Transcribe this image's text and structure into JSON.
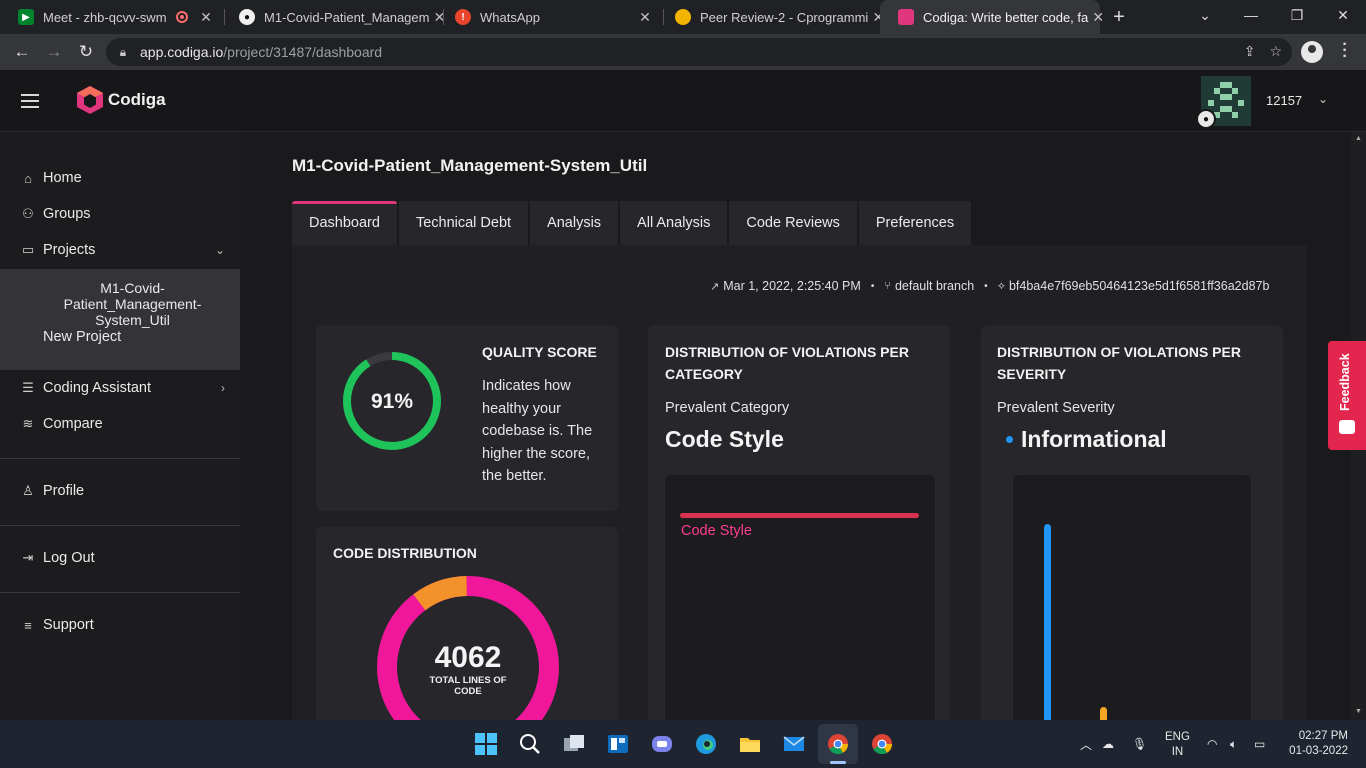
{
  "browser": {
    "tabs": [
      {
        "label": "Meet - zhb-qcvv-swm",
        "active": false
      },
      {
        "label": "M1-Covid-Patient_Managem",
        "active": false
      },
      {
        "label": "WhatsApp",
        "active": false
      },
      {
        "label": "Peer Review-2 - Cprogrammi",
        "active": false
      },
      {
        "label": "Codiga: Write better code, fa",
        "active": true
      }
    ],
    "url_host": "app.codiga.io",
    "url_path": "/project/31487/dashboard"
  },
  "header": {
    "brand": "Codiga",
    "username": "12157"
  },
  "sidebar": {
    "home": "Home",
    "groups": "Groups",
    "projects": "Projects",
    "current_project": "M1-Covid-Patient_Management-System_Util",
    "new_project": "New Project",
    "coding_assistant": "Coding Assistant",
    "compare": "Compare",
    "profile": "Profile",
    "logout": "Log Out",
    "support": "Support"
  },
  "main": {
    "title": "M1-Covid-Patient_Management-System_Util",
    "tabs": [
      "Dashboard",
      "Technical Debt",
      "Analysis",
      "All Analysis",
      "Code Reviews",
      "Preferences"
    ],
    "active_tab": "Dashboard",
    "meta": {
      "date": "Mar 1, 2022, 2:25:40 PM",
      "branch": "default branch",
      "commit": "bf4ba4e7f69eb50464123e5d1f6581ff36a2d87b"
    },
    "quality": {
      "title": "QUALITY SCORE",
      "score_label": "91%",
      "score": 91,
      "description": "Indicates how healthy your codebase is. The higher the score, the better."
    },
    "distribution": {
      "title": "CODE DISTRIBUTION",
      "total": "4062",
      "total_label": "TOTAL LINES OF CODE"
    },
    "category": {
      "title": "DISTRIBUTION OF VIOLATIONS PER CATEGORY",
      "prevalent_label": "Prevalent Category",
      "prevalent_value": "Code Style",
      "bar_label": "Code Style"
    },
    "severity": {
      "title": "DISTRIBUTION OF VIOLATIONS PER SEVERITY",
      "prevalent_label": "Prevalent Severity",
      "prevalent_value": "Informational"
    }
  },
  "feedback": "Feedback",
  "taskbar": {
    "lang_1": "ENG",
    "lang_2": "IN",
    "time": "02:27 PM",
    "date": "01-03-2022"
  },
  "colors": {
    "accent": "#e0367d",
    "score_green": "#1ec45a",
    "donut_pink": "#f0179a",
    "donut_orange": "#f3922b",
    "category_red": "#d9324e",
    "category_label": "#ff3d92",
    "severity_blue": "#2196f3",
    "severity_orange": "#f5a623"
  }
}
